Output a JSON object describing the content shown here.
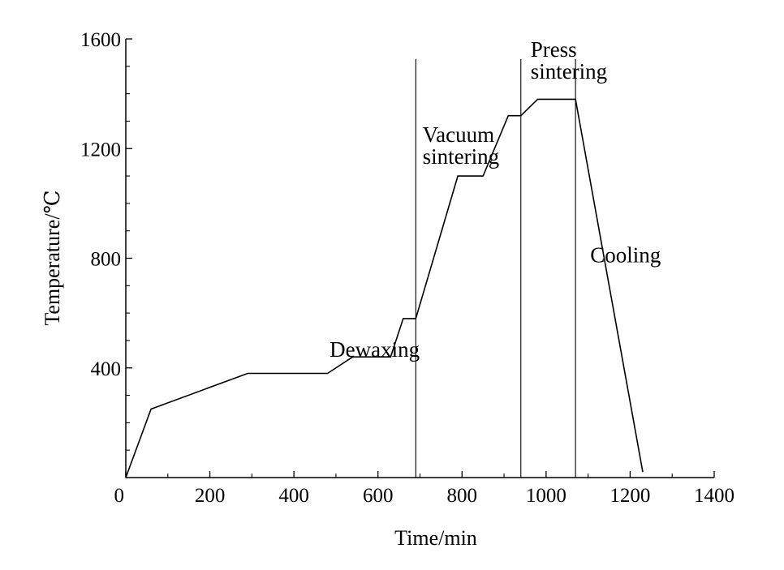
{
  "chart_data": {
    "type": "line",
    "xlabel": "Time/min",
    "ylabel": "Temperature/℃",
    "xlim": [
      0,
      1400
    ],
    "ylim": [
      0,
      1600
    ],
    "x_ticks": [
      0,
      200,
      400,
      600,
      800,
      1000,
      1200,
      1400
    ],
    "y_ticks": [
      400,
      800,
      1200,
      1600
    ],
    "x_tick_labels": [
      "0",
      "200",
      "400",
      "600",
      "800",
      "1000",
      "1200",
      "1400"
    ],
    "y_tick_labels": [
      "400",
      "800",
      "1200",
      "1600"
    ],
    "x_minor_step": 100,
    "y_minor_step": 100,
    "grid": false,
    "series": [
      {
        "x": [
          0,
          60,
          290,
          480,
          540,
          630,
          660,
          690,
          790,
          850,
          910,
          940,
          980,
          1060,
          1070,
          1230
        ],
        "y": [
          0,
          250,
          380,
          380,
          440,
          440,
          580,
          580,
          1100,
          1100,
          1320,
          1320,
          1380,
          1380,
          1380,
          20
        ]
      }
    ],
    "vlines": [
      690,
      940,
      1070
    ],
    "annotations": [
      {
        "text": "Dewaxing",
        "x": 485,
        "y": 440
      },
      {
        "text": "Vacuum",
        "x": 706,
        "y": 1225
      },
      {
        "text": "sintering",
        "x": 706,
        "y": 1145
      },
      {
        "text": "Press",
        "x": 963,
        "y": 1535
      },
      {
        "text": "sintering",
        "x": 963,
        "y": 1455
      },
      {
        "text": "Cooling",
        "x": 1105,
        "y": 785
      }
    ]
  }
}
